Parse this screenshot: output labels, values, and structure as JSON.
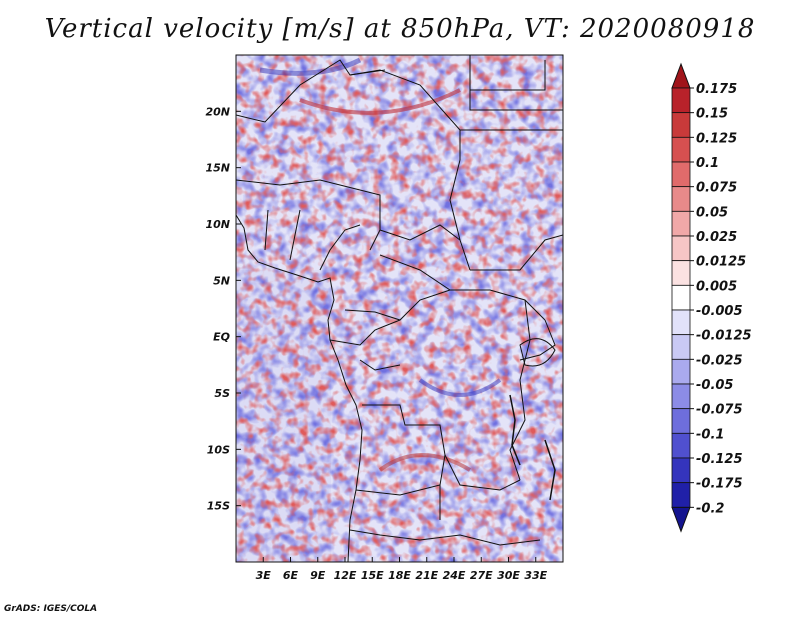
{
  "title": "Vertical velocity [m/s] at 850hPa, VT: 2020080918",
  "credit": "GrADS: IGES/COLA",
  "map": {
    "lon_range": [
      0,
      36
    ],
    "lat_range": [
      -20,
      25
    ],
    "lon_ticks": [
      3,
      6,
      9,
      12,
      15,
      18,
      21,
      24,
      27,
      30,
      33
    ],
    "lon_tick_labels": [
      "3E",
      "6E",
      "9E",
      "12E",
      "15E",
      "18E",
      "21E",
      "24E",
      "27E",
      "30E",
      "33E"
    ],
    "lat_ticks": [
      20,
      15,
      10,
      5,
      0,
      -5,
      -10,
      -15
    ],
    "lat_tick_labels": [
      "20N",
      "15N",
      "10N",
      "5N",
      "EQ",
      "5S",
      "10S",
      "15S"
    ]
  },
  "colorbar": {
    "labels": [
      "0.175",
      "0.15",
      "0.125",
      "0.1",
      "0.075",
      "0.05",
      "0.025",
      "0.0125",
      "0.005",
      "-0.005",
      "-0.0125",
      "-0.025",
      "-0.05",
      "-0.075",
      "-0.1",
      "-0.125",
      "-0.175",
      "-0.2"
    ],
    "colors": [
      "#a0141a",
      "#b8222a",
      "#c83a3a",
      "#d65050",
      "#e06b6b",
      "#e88a8a",
      "#f0a8a8",
      "#f6c6c6",
      "#fbe2e2",
      "#ffffff",
      "#e2e2fa",
      "#c9c9f4",
      "#aaaaee",
      "#8c8ce6",
      "#6e6edc",
      "#5050cf",
      "#3434bd",
      "#2020a8",
      "#14148f"
    ],
    "top_color": "#a0141a",
    "bottom_color": "#14148f"
  }
}
